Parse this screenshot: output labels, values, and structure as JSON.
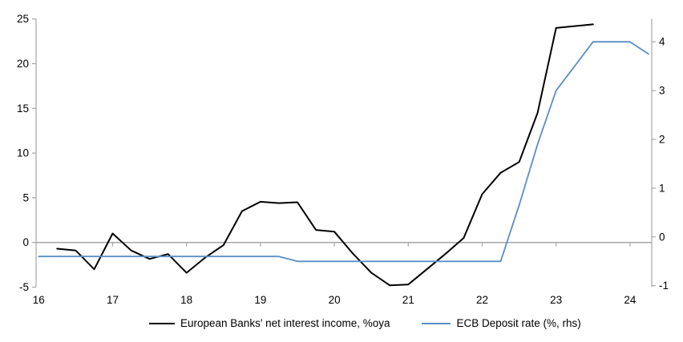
{
  "chart_data": {
    "type": "line",
    "title": "",
    "legend_position": "bottom",
    "grid": "zero-line-only",
    "axis_color": "#A6A6A6",
    "x_axis": {
      "tick_labels": [
        "16",
        "17",
        "18",
        "19",
        "20",
        "21",
        "22",
        "23",
        "24"
      ],
      "ticks": [
        16,
        17,
        18,
        19,
        20,
        21,
        22,
        23,
        24
      ],
      "range": [
        16,
        24.3
      ]
    },
    "left_axis": {
      "tick_labels": [
        "-5",
        "0",
        "5",
        "10",
        "15",
        "20",
        "25"
      ],
      "ticks": [
        -5,
        0,
        5,
        10,
        15,
        20,
        25
      ],
      "range": [
        -5,
        25.3
      ]
    },
    "right_axis": {
      "tick_labels": [
        "-1",
        "0",
        "1",
        "2",
        "3",
        "4"
      ],
      "ticks": [
        -1,
        0,
        1,
        2,
        3,
        4
      ],
      "range": [
        -1,
        4.6
      ]
    },
    "series": [
      {
        "name": "European Banks' net interest income, %oya",
        "color": "#000000",
        "axis": "left",
        "x": [
          16.25,
          16.5,
          16.75,
          17.0,
          17.25,
          17.5,
          17.75,
          18.0,
          18.25,
          18.5,
          18.75,
          19.0,
          19.25,
          19.5,
          19.75,
          20.0,
          20.25,
          20.5,
          20.75,
          21.0,
          21.25,
          21.5,
          21.75,
          22.0,
          22.25,
          22.5,
          22.75,
          23.0,
          23.25,
          23.5
        ],
        "values": [
          -0.7,
          -0.9,
          -3.0,
          1.0,
          -0.9,
          -1.85,
          -1.3,
          -3.4,
          -1.7,
          -0.3,
          3.5,
          4.55,
          4.4,
          4.5,
          1.4,
          1.2,
          -1.25,
          -3.4,
          -4.8,
          -4.7,
          -3.0,
          -1.3,
          0.5,
          5.4,
          7.8,
          9.0,
          14.5,
          24.0,
          24.2,
          24.4
        ]
      },
      {
        "name": "ECB Deposit rate (%, rhs)",
        "color": "#5A8FC4",
        "axis": "right",
        "x": [
          16.0,
          19.25,
          19.5,
          22.25,
          22.5,
          22.75,
          23.0,
          23.25,
          23.5,
          24.0,
          24.25
        ],
        "values": [
          -0.4,
          -0.4,
          -0.5,
          -0.5,
          0.65,
          1.9,
          3.0,
          3.5,
          4.0,
          4.0,
          3.75
        ]
      }
    ]
  }
}
